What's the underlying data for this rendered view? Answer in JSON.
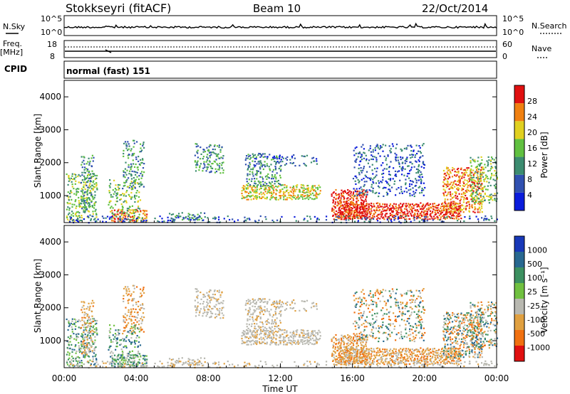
{
  "header": {
    "station": "Stokkseyri (fitACF)",
    "beam": "Beam 10",
    "date": "22/Oct/2014"
  },
  "noise_panel": {
    "left_label": "N.Sky",
    "right_label": "N.Search",
    "left_ticks": [
      "10^5",
      "10^0"
    ],
    "right_ticks": [
      "10^5",
      "10^0"
    ]
  },
  "freq_panel": {
    "left_label_1": "Freq.",
    "left_label_2": "[MHz]",
    "right_label": "Nave",
    "left_ticks": [
      "18",
      "8"
    ],
    "right_ticks": [
      "60",
      "0"
    ]
  },
  "cpid": {
    "label": "CPID",
    "value": "normal (fast) 151"
  },
  "chart_data": [
    {
      "type": "heatmap",
      "panel": "power",
      "ylabel": "Slant Range [km]",
      "ylim": [
        180,
        4500
      ],
      "yticks": [
        "1000",
        "2000",
        "3000",
        "4000"
      ],
      "x": [
        "00:00",
        "04:00",
        "08:00",
        "12:00",
        "16:00",
        "20:00",
        "00:00"
      ],
      "colorbar": {
        "label": "Power [dB]",
        "ticks": [
          "4",
          "8",
          "12",
          "16",
          "20",
          "24",
          "28"
        ],
        "colors": [
          "#0a1cdc",
          "#3050b0",
          "#3c8c70",
          "#60c040",
          "#e0d020",
          "#f08010",
          "#e01010"
        ]
      }
    },
    {
      "type": "heatmap",
      "panel": "velocity",
      "ylabel": "Slant Range [km]",
      "ylim": [
        180,
        4500
      ],
      "yticks": [
        "1000",
        "2000",
        "3000",
        "4000"
      ],
      "x": [
        "00:00",
        "04:00",
        "08:00",
        "12:00",
        "16:00",
        "20:00",
        "00:00"
      ],
      "xlabel": "Time UT",
      "colorbar": {
        "label": "Velocity [m s⁻¹]",
        "ticks": [
          "1000",
          "500",
          "100",
          "25",
          "-25",
          "-100",
          "-500",
          "-1000"
        ],
        "colors": [
          "#1838b8",
          "#286890",
          "#3c9060",
          "#70c040",
          "#b8b8b0",
          "#e0a040",
          "#f07010",
          "#e01010"
        ]
      }
    }
  ]
}
